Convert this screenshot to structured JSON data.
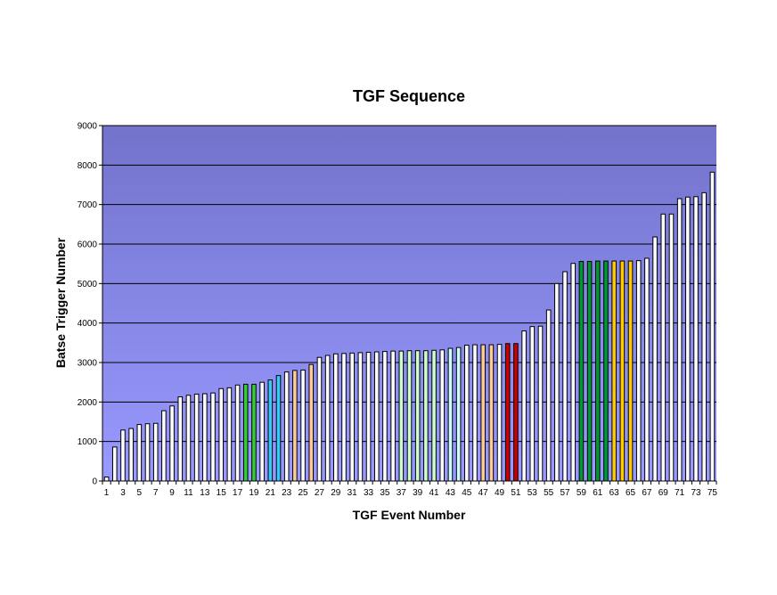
{
  "chart_data": {
    "type": "bar",
    "title": "TGF Sequence",
    "xlabel": "TGF Event Number",
    "ylabel": "Batse Trigger Number",
    "ylim": [
      0,
      9000
    ],
    "yticks": [
      0,
      1000,
      2000,
      3000,
      4000,
      5000,
      6000,
      7000,
      8000,
      9000
    ],
    "x_tick_labels": [
      "1",
      "3",
      "5",
      "7",
      "9",
      "11",
      "13",
      "15",
      "17",
      "19",
      "21",
      "23",
      "25",
      "27",
      "29",
      "31",
      "33",
      "35",
      "37",
      "39",
      "41",
      "43",
      "45",
      "47",
      "49",
      "51",
      "53",
      "55",
      "57",
      "59",
      "61",
      "63",
      "65",
      "67",
      "69",
      "71",
      "73",
      "75"
    ],
    "grid": "horizontal",
    "legend": "none",
    "categories": [
      1,
      2,
      3,
      4,
      5,
      6,
      7,
      8,
      9,
      10,
      11,
      12,
      13,
      14,
      15,
      16,
      17,
      18,
      19,
      20,
      21,
      22,
      23,
      24,
      25,
      26,
      27,
      28,
      29,
      30,
      31,
      32,
      33,
      34,
      35,
      36,
      37,
      38,
      39,
      40,
      41,
      42,
      43,
      44,
      45,
      46,
      47,
      48,
      49,
      50,
      51,
      52,
      53,
      54,
      55,
      56,
      57,
      58,
      59,
      60,
      61,
      62,
      63,
      64,
      65,
      66,
      67,
      68,
      69,
      70,
      71,
      72,
      73,
      74,
      75
    ],
    "values": [
      100,
      860,
      1290,
      1330,
      1430,
      1450,
      1460,
      1780,
      1900,
      2130,
      2170,
      2200,
      2210,
      2230,
      2340,
      2360,
      2430,
      2450,
      2450,
      2500,
      2560,
      2670,
      2760,
      2800,
      2810,
      2950,
      3130,
      3180,
      3220,
      3230,
      3240,
      3250,
      3260,
      3270,
      3280,
      3290,
      3290,
      3300,
      3300,
      3300,
      3310,
      3320,
      3360,
      3380,
      3440,
      3450,
      3450,
      3450,
      3460,
      3480,
      3480,
      3800,
      3910,
      3920,
      4330,
      5000,
      5300,
      5510,
      5560,
      5560,
      5570,
      5570,
      5570,
      5570,
      5570,
      5580,
      5640,
      6180,
      6760,
      6760,
      7150,
      7190,
      7200,
      7300,
      7820
    ],
    "colors": [
      "#ffffff",
      "#ffffff",
      "#ffffff",
      "#ffffff",
      "#ffffff",
      "#ffffff",
      "#ffffff",
      "#ffffff",
      "#ffffff",
      "#ffffff",
      "#ffffff",
      "#ffffff",
      "#ffffff",
      "#ffffff",
      "#ffffff",
      "#ffffff",
      "#ffffff",
      "#33cc33",
      "#33cc33",
      "#ffffff",
      "#33ccff",
      "#33ccff",
      "#ffffff",
      "#ffcc99",
      "#ffffff",
      "#ffcc99",
      "#ffffff",
      "#ffffff",
      "#ffffff",
      "#ffffff",
      "#ffffff",
      "#ffffff",
      "#ffffff",
      "#ffffff",
      "#ffffff",
      "#ffffff",
      "#ccffcc",
      "#ccffcc",
      "#ccffcc",
      "#ccffcc",
      "#ccffcc",
      "#ffffff",
      "#ccffff",
      "#ccffff",
      "#ffffff",
      "#ffffff",
      "#ffcc99",
      "#ffcc99",
      "#ffffff",
      "#cc0000",
      "#cc0000",
      "#ffffff",
      "#ffffff",
      "#ffffff",
      "#ffffff",
      "#ffffff",
      "#ffffff",
      "#ffffff",
      "#009933",
      "#009933",
      "#009933",
      "#009933",
      "#ffcc00",
      "#ffcc00",
      "#ffcc00",
      "#ffffff",
      "#ffffff",
      "#ffffff",
      "#ffffff",
      "#ffffff",
      "#ffffff",
      "#ffffff",
      "#ffffff",
      "#ffffff",
      "#ffffff"
    ],
    "plot_background": [
      "#7373cc",
      "#9999ff"
    ]
  }
}
